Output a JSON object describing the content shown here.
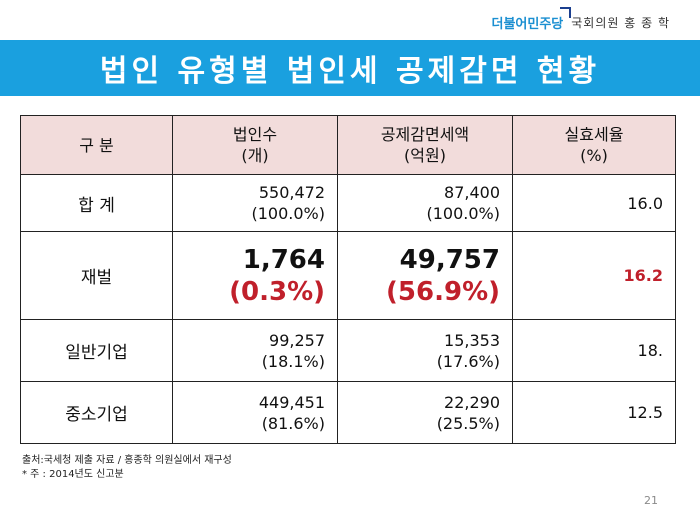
{
  "header": {
    "party_name": "더불어민주당",
    "office": "국회의원 홍 종 학"
  },
  "title": "법인 유형별 법인세 공제감면 현황",
  "table": {
    "headers": [
      {
        "line1": "구 분",
        "line2": ""
      },
      {
        "line1": "법인수",
        "line2": "(개)"
      },
      {
        "line1": "공제감면세액",
        "line2": "(억원)"
      },
      {
        "line1": "실효세율",
        "line2": "(%)"
      }
    ],
    "rows": [
      {
        "label": "합 계",
        "count": "550,472",
        "count_pct": "(100.0%)",
        "amount": "87,400",
        "amount_pct": "(100.0%)",
        "rate": "16.0"
      },
      {
        "label": "재벌",
        "count": "1,764",
        "count_pct": "(0.3%)",
        "amount": "49,757",
        "amount_pct": "(56.9%)",
        "rate": "16.2"
      },
      {
        "label": "일반기업",
        "count": "99,257",
        "count_pct": "(18.1%)",
        "amount": "15,353",
        "amount_pct": "(17.6%)",
        "rate": "18."
      },
      {
        "label": "중소기업",
        "count": "449,451",
        "count_pct": "(81.6%)",
        "amount": "22,290",
        "amount_pct": "(25.5%)",
        "rate": "12.5"
      }
    ]
  },
  "footnotes": {
    "source": "출처:국세청 제출 자료 / 홍종학 의원실에서 재구성",
    "note": "* 주 : 2014년도 신고분"
  },
  "page_number": "21",
  "colors": {
    "title_bar": "#1aa0df",
    "header_row": "#f2dcdb",
    "highlight": "#c0202b"
  }
}
